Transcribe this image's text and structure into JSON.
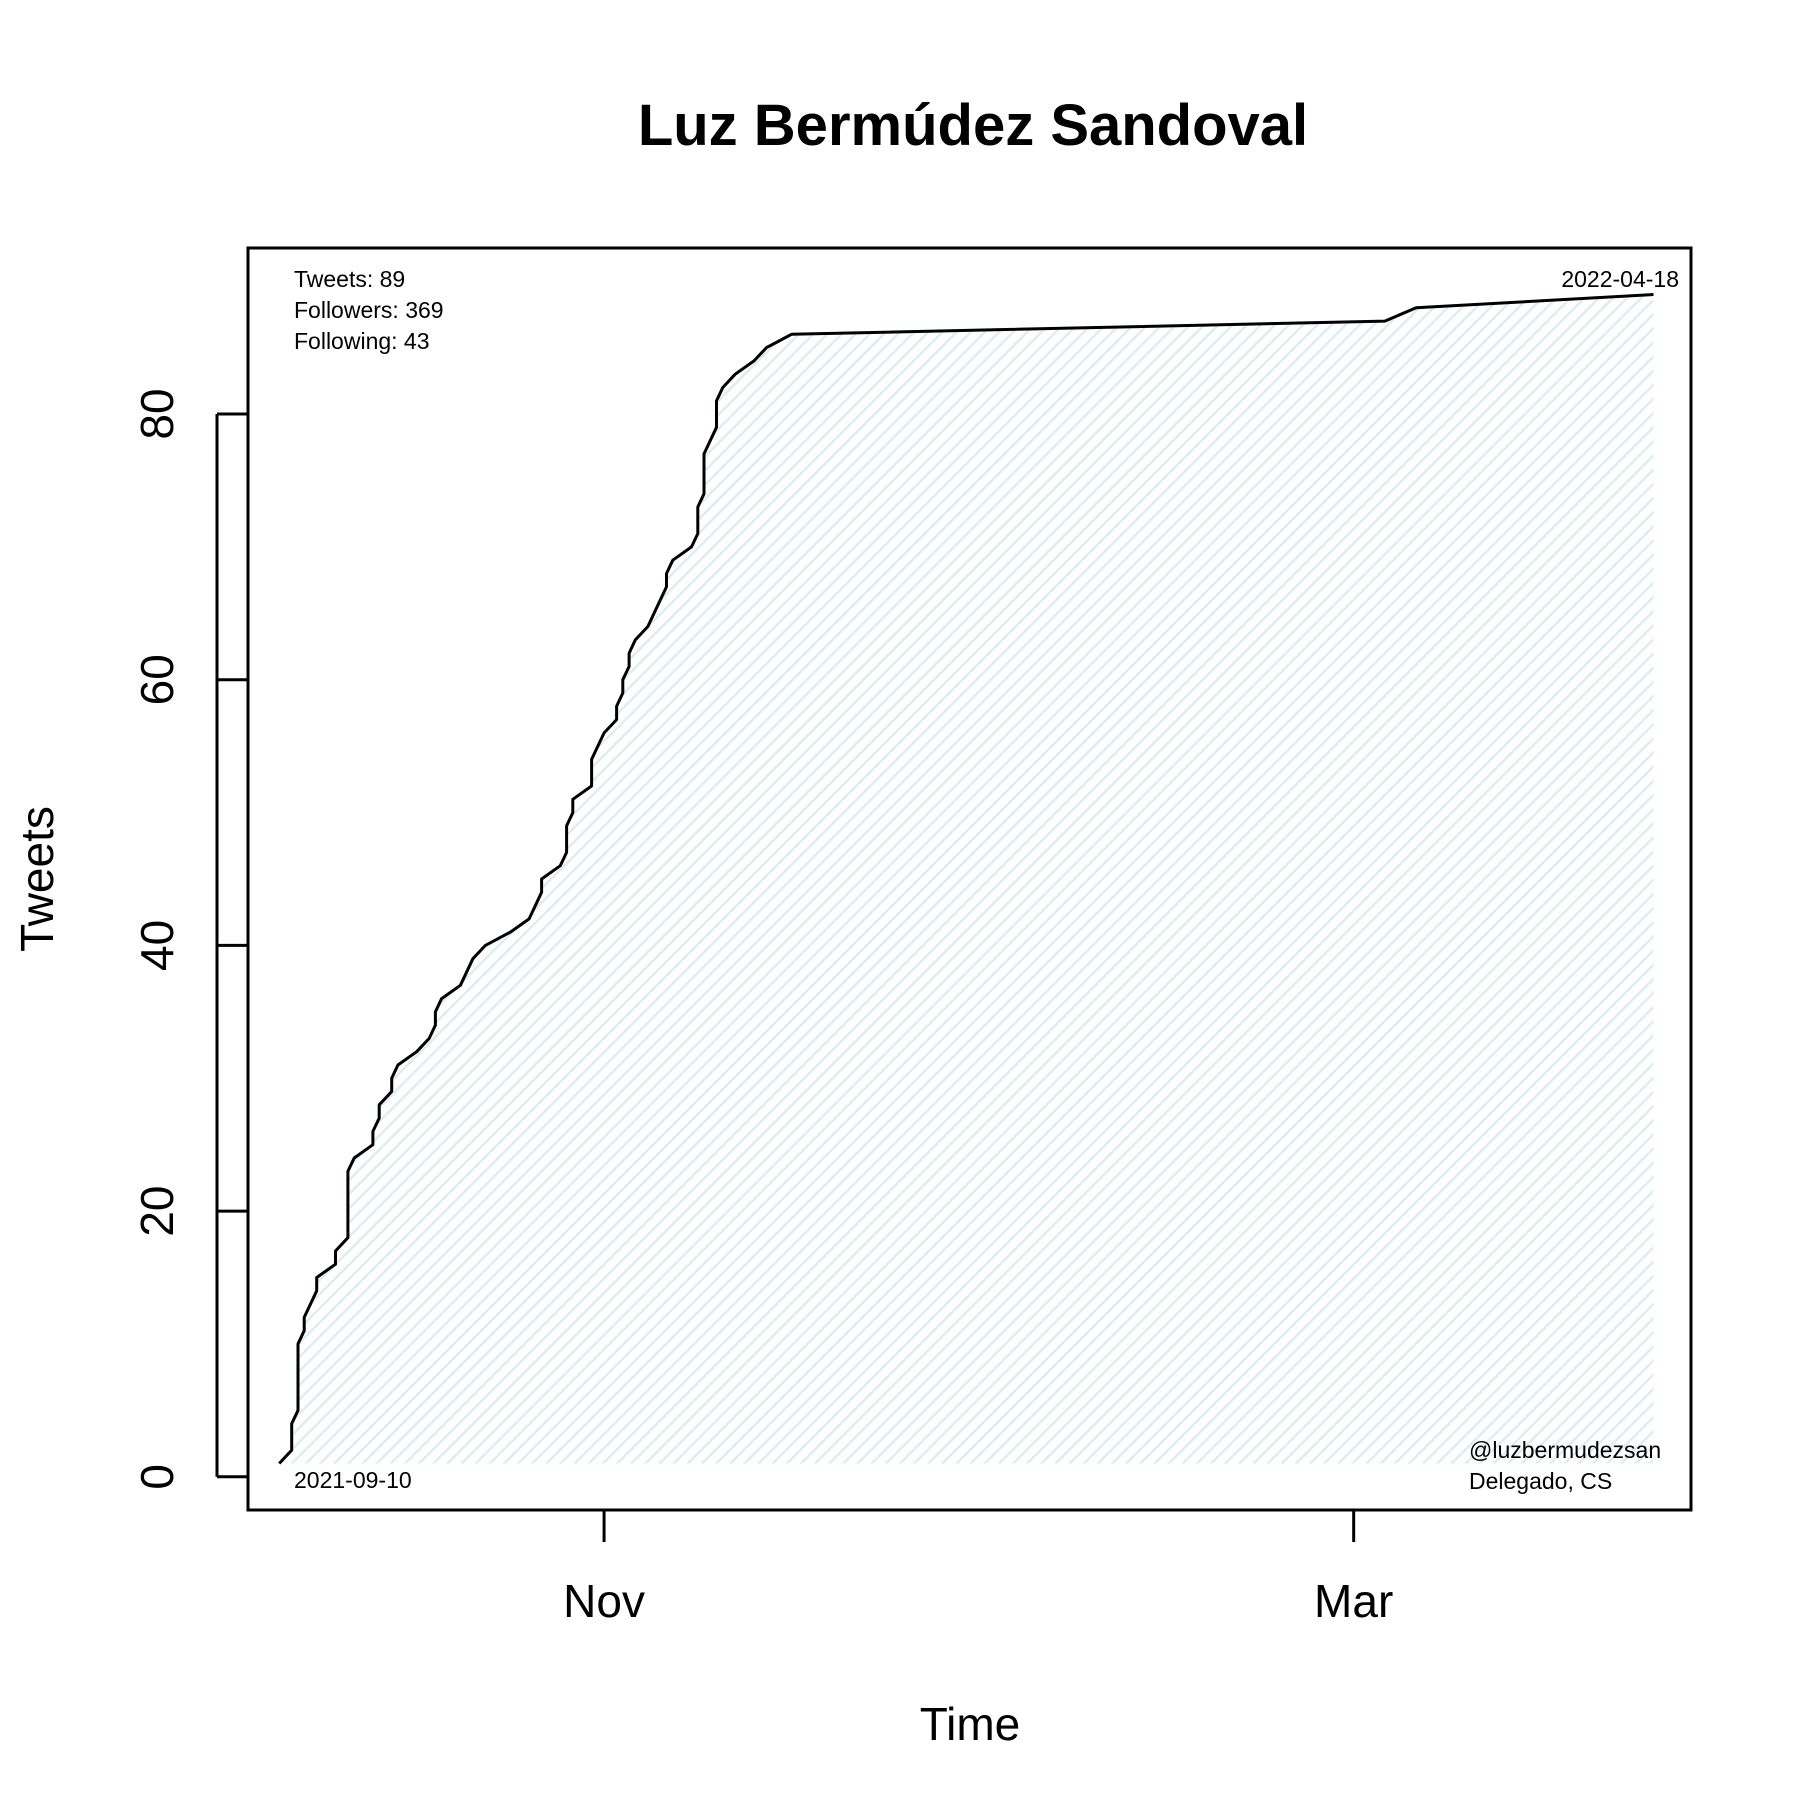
{
  "chart_data": {
    "type": "area",
    "title": "Luz Bermúdez Sandoval",
    "xlabel": "Time",
    "ylabel": "Tweets",
    "x_start": "2021-09-10",
    "x_end": "2022-04-18",
    "xlim": [
      "2021-09-05",
      "2022-04-24"
    ],
    "ylim": [
      -2.5,
      92.5
    ],
    "x_ticks": [
      {
        "date": "2021-11-01",
        "label": "Nov"
      },
      {
        "date": "2022-03-01",
        "label": "Mar"
      }
    ],
    "y_ticks": [
      0,
      20,
      40,
      60,
      80
    ],
    "grid": false,
    "fill_color": "#dceef2",
    "line_color": "#000000",
    "stats": [
      {
        "label": "Tweets: 89"
      },
      {
        "label": "Followers: 369"
      },
      {
        "label": "Following: 43"
      }
    ],
    "start_label": "2021-09-10",
    "end_label": "2022-04-18",
    "handle": "@luzbermudezsan",
    "affiliation": "Delegado, CS",
    "series": [
      {
        "points": [
          [
            "2021-09-10",
            1
          ],
          [
            "2021-09-12",
            2
          ],
          [
            "2021-09-12",
            4
          ],
          [
            "2021-09-13",
            5
          ],
          [
            "2021-09-13",
            10
          ],
          [
            "2021-09-14",
            11
          ],
          [
            "2021-09-14",
            12
          ],
          [
            "2021-09-16",
            14
          ],
          [
            "2021-09-16",
            15
          ],
          [
            "2021-09-19",
            16
          ],
          [
            "2021-09-19",
            17
          ],
          [
            "2021-09-21",
            18
          ],
          [
            "2021-09-21",
            23
          ],
          [
            "2021-09-22",
            24
          ],
          [
            "2021-09-25",
            25
          ],
          [
            "2021-09-25",
            26
          ],
          [
            "2021-09-26",
            27
          ],
          [
            "2021-09-26",
            28
          ],
          [
            "2021-09-28",
            29
          ],
          [
            "2021-09-28",
            30
          ],
          [
            "2021-09-29",
            31
          ],
          [
            "2021-10-02",
            32
          ],
          [
            "2021-10-04",
            33
          ],
          [
            "2021-10-05",
            34
          ],
          [
            "2021-10-05",
            35
          ],
          [
            "2021-10-06",
            36
          ],
          [
            "2021-10-09",
            37
          ],
          [
            "2021-10-11",
            39
          ],
          [
            "2021-10-13",
            40
          ],
          [
            "2021-10-17",
            41
          ],
          [
            "2021-10-20",
            42
          ],
          [
            "2021-10-22",
            44
          ],
          [
            "2021-10-22",
            45
          ],
          [
            "2021-10-25",
            46
          ],
          [
            "2021-10-26",
            47
          ],
          [
            "2021-10-26",
            49
          ],
          [
            "2021-10-27",
            50
          ],
          [
            "2021-10-27",
            51
          ],
          [
            "2021-10-30",
            52
          ],
          [
            "2021-10-30",
            54
          ],
          [
            "2021-11-01",
            56
          ],
          [
            "2021-11-03",
            57
          ],
          [
            "2021-11-03",
            58
          ],
          [
            "2021-11-04",
            59
          ],
          [
            "2021-11-04",
            60
          ],
          [
            "2021-11-05",
            61
          ],
          [
            "2021-11-05",
            62
          ],
          [
            "2021-11-06",
            63
          ],
          [
            "2021-11-08",
            64
          ],
          [
            "2021-11-11",
            67
          ],
          [
            "2021-11-11",
            68
          ],
          [
            "2021-11-12",
            69
          ],
          [
            "2021-11-15",
            70
          ],
          [
            "2021-11-16",
            71
          ],
          [
            "2021-11-16",
            73
          ],
          [
            "2021-11-17",
            74
          ],
          [
            "2021-11-17",
            77
          ],
          [
            "2021-11-19",
            79
          ],
          [
            "2021-11-19",
            81
          ],
          [
            "2021-11-20",
            82
          ],
          [
            "2021-11-22",
            83
          ],
          [
            "2021-11-25",
            84
          ],
          [
            "2021-11-27",
            85
          ],
          [
            "2021-11-29",
            85.5
          ],
          [
            "2021-12-01",
            86
          ],
          [
            "2022-03-06",
            87
          ],
          [
            "2022-03-11",
            88
          ],
          [
            "2022-04-18",
            89
          ]
        ]
      }
    ]
  }
}
